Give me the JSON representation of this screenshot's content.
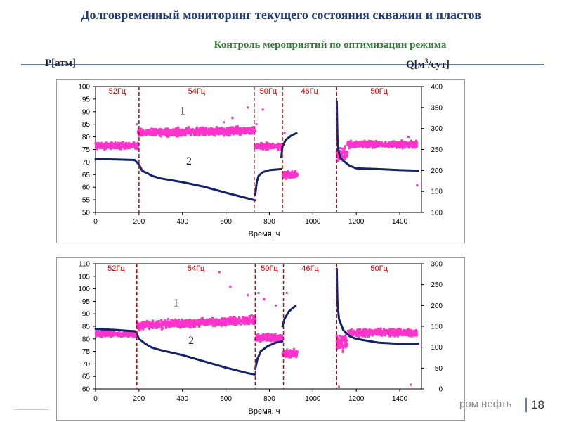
{
  "header": {
    "title": "Долговременный мониторинг текущего состояния скважин и пластов",
    "subtitle": "Контроль мероприятий по оптимизации режима",
    "left_axis_label": "Р[атм]",
    "right_axis_label_main": "Q[м",
    "right_axis_label_sup": "3",
    "right_axis_label_end": "/сут]"
  },
  "footer": {
    "text": "ром нефть",
    "page": "18"
  },
  "colors": {
    "pressure": "#12226b",
    "rate": "#ff33cc",
    "marker": "#cc0000"
  },
  "chart_data": [
    {
      "type": "scatter",
      "xlabel": "Время, ч",
      "xlim": [
        0,
        1500
      ],
      "xticks": [
        0,
        200,
        400,
        600,
        800,
        1000,
        1200,
        1400
      ],
      "ylim": [
        50,
        100
      ],
      "yticks": [
        50,
        55,
        60,
        65,
        70,
        75,
        80,
        85,
        90,
        95,
        100
      ],
      "y2lim": [
        100,
        400
      ],
      "y2ticks": [
        100,
        150,
        200,
        250,
        300,
        350,
        400
      ],
      "regimes": [
        {
          "label": "52Гц",
          "x": 0
        },
        {
          "label": "54Гц",
          "x": 200
        },
        {
          "label": "50Гц",
          "x": 730
        },
        {
          "label": "46Гц",
          "x": 860
        },
        {
          "label": "50Гц",
          "x": 1110
        }
      ],
      "markers_x": [
        200,
        730,
        860,
        1110
      ],
      "curve_labels": [
        {
          "text": "1",
          "x": 400,
          "y": 89
        },
        {
          "text": "2",
          "x": 430,
          "y": 69
        }
      ],
      "series": [
        {
          "id": "pressure",
          "axis": "left",
          "segments": [
            [
              [
                0,
                71.2
              ],
              [
                100,
                71
              ],
              [
                180,
                70.8
              ],
              [
                200,
                69
              ],
              [
                215,
                66.5
              ],
              [
                240,
                65.5
              ],
              [
                260,
                64.5
              ],
              [
                300,
                63.5
              ],
              [
                400,
                62
              ],
              [
                500,
                60.2
              ],
              [
                600,
                57.8
              ],
              [
                700,
                55.6
              ],
              [
                735,
                54.8
              ]
            ],
            [
              [
                735,
                57
              ],
              [
                742,
                62
              ],
              [
                750,
                64.5
              ],
              [
                770,
                66
              ],
              [
                800,
                66.8
              ],
              [
                855,
                67.2
              ]
            ],
            [
              [
                855,
                72
              ],
              [
                860,
                76
              ],
              [
                875,
                78.8
              ],
              [
                900,
                80.5
              ],
              [
                925,
                81.5
              ]
            ],
            [
              [
                1110,
                94
              ],
              [
                1113,
                80
              ],
              [
                1117,
                75
              ],
              [
                1125,
                72
              ],
              [
                1140,
                70.5
              ],
              [
                1170,
                68.5
              ],
              [
                1200,
                67.5
              ],
              [
                1300,
                67.2
              ],
              [
                1400,
                66.8
              ],
              [
                1485,
                66.6
              ]
            ]
          ]
        },
        {
          "id": "rate",
          "axis": "right",
          "bands": [
            {
              "x": [
                0,
                195
              ],
              "center": 259,
              "spread": 11
            },
            {
              "x": [
                195,
                735
              ],
              "center_start": 290,
              "center_end": 295,
              "spread": 13
            },
            {
              "x": [
                735,
                860
              ],
              "center": 258,
              "spread": 10
            },
            {
              "x": [
                860,
                930
              ],
              "center": 190,
              "spread": 12
            },
            {
              "x": [
                1110,
                1160
              ],
              "center": 240,
              "spread": 22
            },
            {
              "x": [
                1160,
                1480
              ],
              "center": 262,
              "spread": 11
            }
          ],
          "outliers": [
            [
              190,
              310
            ],
            [
              630,
              325
            ],
            [
              700,
              350
            ],
            [
              740,
              310
            ],
            [
              770,
              345
            ],
            [
              590,
              315
            ],
            [
              1440,
              280
            ],
            [
              1480,
              165
            ],
            [
              870,
              290
            ]
          ]
        }
      ]
    },
    {
      "type": "scatter",
      "xlabel": "Время, ч",
      "xlim": [
        0,
        1500
      ],
      "xticks": [
        0,
        200,
        400,
        600,
        800,
        1000,
        1200,
        1400
      ],
      "ylim": [
        60,
        110
      ],
      "yticks": [
        60,
        65,
        70,
        75,
        80,
        85,
        90,
        95,
        100,
        105,
        110
      ],
      "y2lim": [
        0,
        300
      ],
      "y2ticks": [
        0,
        50,
        100,
        150,
        200,
        250,
        300
      ],
      "regimes": [
        {
          "label": "52Гц",
          "x": 0
        },
        {
          "label": "54Гц",
          "x": 190
        },
        {
          "label": "50Гц",
          "x": 735
        },
        {
          "label": "46Гц",
          "x": 865
        },
        {
          "label": "50Гц",
          "x": 1110
        }
      ],
      "markers_x": [
        190,
        735,
        865,
        1110
      ],
      "curve_labels": [
        {
          "text": "1",
          "x": 370,
          "y": 93
        },
        {
          "text": "2",
          "x": 440,
          "y": 78
        }
      ],
      "series": [
        {
          "id": "pressure",
          "axis": "left",
          "segments": [
            [
              [
                0,
                84
              ],
              [
                100,
                83.5
              ],
              [
                185,
                83
              ],
              [
                200,
                80
              ],
              [
                230,
                78
              ],
              [
                260,
                76.5
              ],
              [
                300,
                75.5
              ],
              [
                400,
                73.5
              ],
              [
                500,
                71
              ],
              [
                600,
                68.5
              ],
              [
                700,
                66.3
              ],
              [
                735,
                65.8
              ]
            ],
            [
              [
                735,
                68
              ],
              [
                745,
                72
              ],
              [
                760,
                75
              ],
              [
                790,
                77
              ],
              [
                830,
                78.5
              ],
              [
                860,
                79
              ]
            ],
            [
              [
                860,
                85
              ],
              [
                870,
                88
              ],
              [
                890,
                91
              ],
              [
                920,
                93.2
              ]
            ],
            [
              [
                1110,
                108
              ],
              [
                1113,
                95
              ],
              [
                1120,
                88
              ],
              [
                1140,
                83.5
              ],
              [
                1170,
                81
              ],
              [
                1200,
                80
              ],
              [
                1300,
                78.5
              ],
              [
                1400,
                78
              ],
              [
                1485,
                78
              ]
            ]
          ]
        },
        {
          "id": "rate",
          "axis": "right",
          "bands": [
            {
              "x": [
                0,
                190
              ],
              "center": 132,
              "spread": 10
            },
            {
              "x": [
                190,
                735
              ],
              "center_start": 152,
              "center_end": 165,
              "spread": 13
            },
            {
              "x": [
                735,
                860
              ],
              "center": 122,
              "spread": 12
            },
            {
              "x": [
                860,
                930
              ],
              "center": 85,
              "spread": 12
            },
            {
              "x": [
                1110,
                1160
              ],
              "center": 110,
              "spread": 25
            },
            {
              "x": [
                1160,
                1480
              ],
              "center": 135,
              "spread": 11
            }
          ],
          "outliers": [
            [
              570,
              280
            ],
            [
              620,
              245
            ],
            [
              700,
              225
            ],
            [
              750,
              230
            ],
            [
              775,
              215
            ],
            [
              830,
              200
            ],
            [
              880,
              230
            ],
            [
              1120,
              5
            ],
            [
              1450,
              10
            ],
            [
              1380,
              140
            ]
          ]
        }
      ]
    }
  ]
}
